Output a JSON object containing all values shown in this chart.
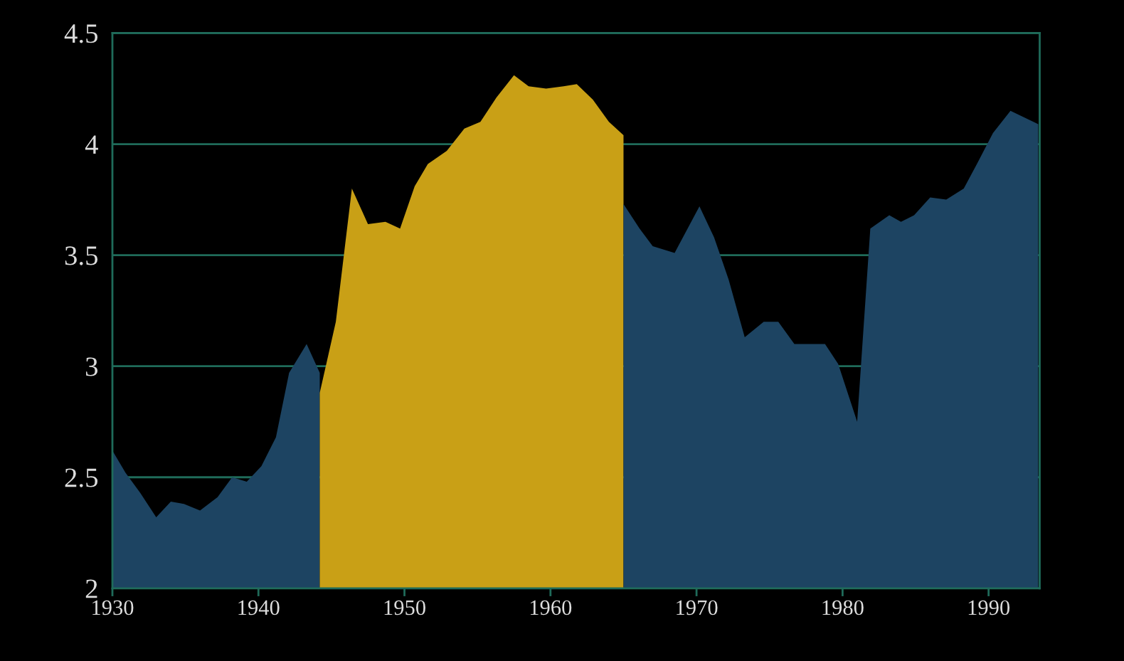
{
  "chart_data": {
    "type": "area",
    "series": [
      {
        "color": "#1d4462",
        "x": [
          1930,
          1930.9,
          1931.9,
          1933.0,
          1934.0,
          1934.9,
          1936.0,
          1937.2,
          1938.2,
          1939.2,
          1940.2,
          1941.2,
          1942.1,
          1943.3,
          1944.2
        ],
        "values": [
          2.62,
          2.52,
          2.43,
          2.32,
          2.39,
          2.38,
          2.35,
          2.41,
          2.5,
          2.48,
          2.55,
          2.68,
          2.97,
          3.1,
          2.97
        ]
      },
      {
        "color": "#c9a016",
        "x": [
          1944.2,
          1945.3,
          1946.4,
          1947.5,
          1948.7,
          1949.7,
          1950.7,
          1951.6,
          1952.9,
          1954.1,
          1955.2,
          1956.3,
          1957.5,
          1958.5,
          1959.7,
          1960.9,
          1961.8,
          1962.9,
          1964.0,
          1965.0
        ],
        "values": [
          2.88,
          3.2,
          3.8,
          3.64,
          3.65,
          3.62,
          3.81,
          3.91,
          3.97,
          4.07,
          4.1,
          4.21,
          4.31,
          4.26,
          4.25,
          4.26,
          4.27,
          4.2,
          4.1,
          4.04
        ]
      },
      {
        "color": "#1d4462",
        "x": [
          1965.0,
          1966.1,
          1967.0,
          1968.5,
          1970.2,
          1971.2,
          1972.2,
          1973.3,
          1974.6,
          1975.6,
          1976.7,
          1978.8,
          1979.7,
          1981.0,
          1981.9,
          1983.2,
          1984.0,
          1984.9,
          1986.0,
          1987.1,
          1988.3,
          1989.2,
          1990.3,
          1991.5,
          1993.4
        ],
        "values": [
          3.73,
          3.62,
          3.54,
          3.51,
          3.72,
          3.58,
          3.39,
          3.13,
          3.2,
          3.2,
          3.1,
          3.1,
          3.01,
          2.75,
          3.62,
          3.68,
          3.65,
          3.68,
          3.76,
          3.75,
          3.8,
          3.91,
          4.05,
          4.15,
          4.09
        ]
      }
    ],
    "xlim": [
      1930,
      1993.5
    ],
    "xticks": [
      1930,
      1940,
      1950,
      1960,
      1970,
      1980,
      1990
    ],
    "ylim": [
      2,
      4.5
    ],
    "yticks": [
      2,
      2.5,
      3,
      3.5,
      4,
      4.5
    ],
    "grid": "y"
  }
}
